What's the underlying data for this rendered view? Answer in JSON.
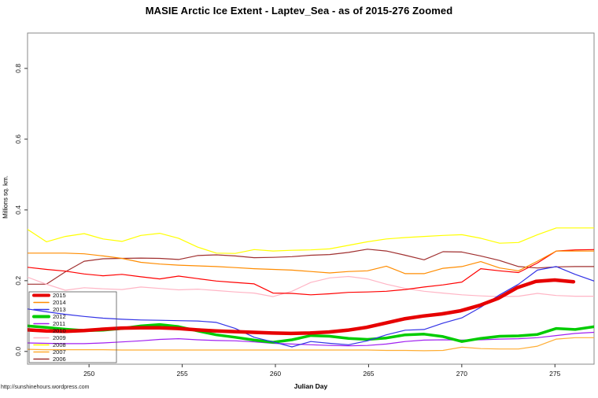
{
  "footer": {
    "url": "http://sunshinehours.wordpress.com"
  },
  "chart_data": {
    "type": "line",
    "title": "MASIE Arctic Ice Extent - Laptev_Sea - as of 2015-276 Zoomed",
    "xlabel": "Julian Day",
    "ylabel": "Millions sq. km.",
    "xlim": [
      246.7,
      277.1
    ],
    "ylim": [
      -0.036,
      0.9
    ],
    "x_ticks": [
      250,
      255,
      260,
      265,
      270,
      275
    ],
    "y_ticks": [
      0.0,
      0.2,
      0.4,
      0.6,
      0.8
    ],
    "grid": false,
    "legend_position": "bottom-left",
    "legend_order": [
      "2015",
      "2014",
      "2013",
      "2012",
      "2011",
      "2010",
      "2009",
      "2008",
      "2007",
      "2006"
    ],
    "x_step_days": 1,
    "series": [
      {
        "name": "2006",
        "color": "#A03030",
        "width": 1.2,
        "x0": 246.7,
        "x_end": 277.1,
        "values": [
          0.19,
          0.19,
          0.225,
          0.255,
          0.262,
          0.263,
          0.264,
          0.263,
          0.26,
          0.271,
          0.273,
          0.27,
          0.265,
          0.266,
          0.268,
          0.272,
          0.274,
          0.28,
          0.289,
          0.284,
          0.272,
          0.259,
          0.282,
          0.281,
          0.27,
          0.257,
          0.24,
          0.236,
          0.239,
          0.24,
          0.24
        ]
      },
      {
        "name": "2007",
        "color": "#FFAD33",
        "width": 1.2,
        "x0": 246.7,
        "x_end": 277.1,
        "values": [
          0.006,
          0.005,
          0.005,
          0.005,
          0.005,
          0.004,
          0.004,
          0.004,
          0.004,
          0.004,
          0.004,
          0.004,
          0.004,
          0.004,
          0.004,
          0.004,
          0.004,
          0.004,
          0.004,
          0.003,
          0.003,
          0.002,
          0.003,
          0.012,
          0.008,
          0.007,
          0.007,
          0.015,
          0.035,
          0.039,
          0.039
        ]
      },
      {
        "name": "2008",
        "color": "#FFFF00",
        "width": 1.2,
        "x0": 246.7,
        "x_end": 277.1,
        "values": [
          0.345,
          0.31,
          0.325,
          0.333,
          0.318,
          0.311,
          0.328,
          0.334,
          0.32,
          0.295,
          0.278,
          0.277,
          0.288,
          0.284,
          0.286,
          0.287,
          0.29,
          0.3,
          0.31,
          0.318,
          0.322,
          0.325,
          0.328,
          0.33,
          0.32,
          0.306,
          0.308,
          0.33,
          0.349,
          0.349,
          0.349
        ]
      },
      {
        "name": "2009",
        "color": "#FFB5C5",
        "width": 1.2,
        "x0": 246.7,
        "x_end": 277.1,
        "values": [
          0.21,
          0.19,
          0.173,
          0.18,
          0.177,
          0.175,
          0.182,
          0.178,
          0.174,
          0.176,
          0.172,
          0.168,
          0.165,
          0.155,
          0.17,
          0.195,
          0.208,
          0.212,
          0.205,
          0.19,
          0.178,
          0.17,
          0.165,
          0.16,
          0.157,
          0.155,
          0.156,
          0.164,
          0.158,
          0.156,
          0.156
        ]
      },
      {
        "name": "2010",
        "color": "#FF0000",
        "width": 1.2,
        "x0": 246.7,
        "x_end": 277.1,
        "values": [
          0.238,
          0.232,
          0.227,
          0.219,
          0.214,
          0.218,
          0.211,
          0.205,
          0.213,
          0.206,
          0.199,
          0.195,
          0.191,
          0.165,
          0.164,
          0.16,
          0.163,
          0.167,
          0.168,
          0.17,
          0.175,
          0.182,
          0.188,
          0.196,
          0.234,
          0.228,
          0.223,
          0.25,
          0.284,
          0.287,
          0.288
        ]
      },
      {
        "name": "2011",
        "color": "#A020F0",
        "width": 1.2,
        "x0": 246.7,
        "x_end": 277.1,
        "values": [
          0.024,
          0.023,
          0.022,
          0.022,
          0.024,
          0.027,
          0.03,
          0.034,
          0.036,
          0.033,
          0.031,
          0.03,
          0.027,
          0.023,
          0.021,
          0.019,
          0.017,
          0.016,
          0.017,
          0.021,
          0.028,
          0.032,
          0.033,
          0.032,
          0.033,
          0.035,
          0.036,
          0.039,
          0.045,
          0.051,
          0.054
        ]
      },
      {
        "name": "2012",
        "color": "#00CC00",
        "width": 3.5,
        "x0": 246.7,
        "x_end": 277.1,
        "values": [
          0.072,
          0.068,
          0.063,
          0.059,
          0.06,
          0.065,
          0.072,
          0.076,
          0.07,
          0.058,
          0.047,
          0.04,
          0.032,
          0.026,
          0.033,
          0.045,
          0.043,
          0.037,
          0.034,
          0.038,
          0.047,
          0.049,
          0.042,
          0.028,
          0.037,
          0.043,
          0.044,
          0.048,
          0.065,
          0.062,
          0.07
        ]
      },
      {
        "name": "2013",
        "color": "#3333E6",
        "width": 1.2,
        "x0": 246.7,
        "x_end": 277.1,
        "values": [
          0.12,
          0.112,
          0.105,
          0.099,
          0.094,
          0.091,
          0.089,
          0.088,
          0.087,
          0.086,
          0.082,
          0.065,
          0.04,
          0.027,
          0.013,
          0.028,
          0.023,
          0.019,
          0.03,
          0.047,
          0.06,
          0.062,
          0.08,
          0.095,
          0.125,
          0.16,
          0.19,
          0.23,
          0.24,
          0.218,
          0.199
        ]
      },
      {
        "name": "2014",
        "color": "#FF8C00",
        "width": 1.2,
        "x0": 246.7,
        "x_end": 277.1,
        "values": [
          0.278,
          0.278,
          0.278,
          0.276,
          0.27,
          0.263,
          0.252,
          0.247,
          0.244,
          0.242,
          0.24,
          0.237,
          0.234,
          0.232,
          0.23,
          0.226,
          0.222,
          0.226,
          0.228,
          0.241,
          0.22,
          0.22,
          0.235,
          0.24,
          0.254,
          0.236,
          0.228,
          0.255,
          0.284,
          0.284,
          0.284
        ]
      },
      {
        "name": "2015",
        "color": "#E60000",
        "width": 4.5,
        "x0": 246.7,
        "x_end": 276.0,
        "values": [
          0.061,
          0.058,
          0.057,
          0.059,
          0.063,
          0.066,
          0.067,
          0.067,
          0.065,
          0.061,
          0.058,
          0.056,
          0.054,
          0.052,
          0.051,
          0.052,
          0.055,
          0.06,
          0.068,
          0.08,
          0.092,
          0.1,
          0.106,
          0.115,
          0.13,
          0.15,
          0.18,
          0.198,
          0.202,
          0.197
        ]
      }
    ]
  }
}
